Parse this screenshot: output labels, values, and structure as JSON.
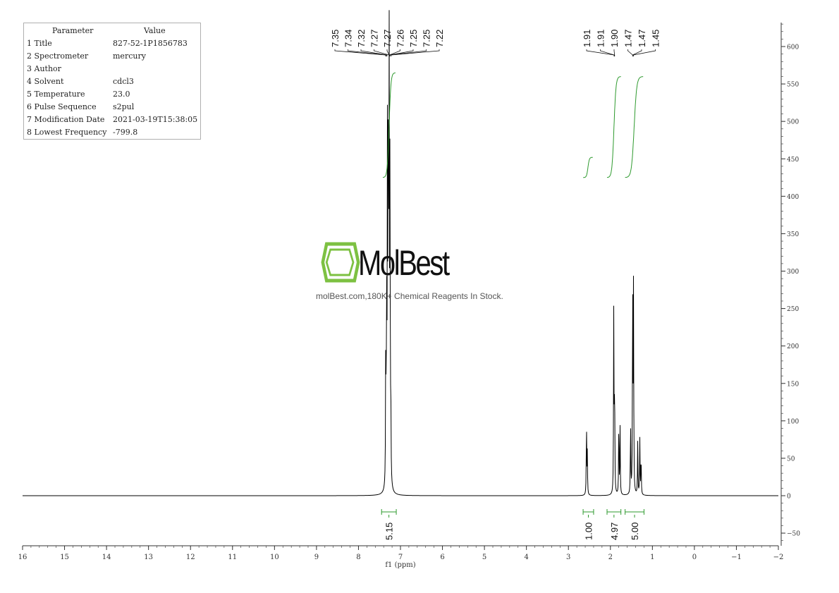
{
  "parameter_table": {
    "header": {
      "param": "Parameter",
      "value": "Value"
    },
    "rows": [
      {
        "param": "1 Title",
        "value": "827-52-1P1856783"
      },
      {
        "param": "2 Spectrometer",
        "value": "mercury"
      },
      {
        "param": "3 Author",
        "value": ""
      },
      {
        "param": "4 Solvent",
        "value": "cdcl3"
      },
      {
        "param": "5 Temperature",
        "value": "23.0"
      },
      {
        "param": "6 Pulse Sequence",
        "value": "s2pul"
      },
      {
        "param": "7 Modification Date",
        "value": "2021-03-19T15:38:05"
      },
      {
        "param": "8 Lowest Frequency",
        "value": "-799.8"
      }
    ]
  },
  "watermark": {
    "brand": "MolBest",
    "tagline": "molBest.com,180K+ Chemical Reagents In Stock.",
    "logo_color": "#7dc142"
  },
  "chart_data": {
    "type": "line",
    "xlabel": "f1 (ppm)",
    "xlim": [
      16,
      -2
    ],
    "x_ticks": [
      16,
      15,
      14,
      13,
      12,
      11,
      10,
      9,
      8,
      7,
      6,
      5,
      4,
      3,
      2,
      1,
      0,
      -1,
      -2
    ],
    "ylim": [
      -60,
      640
    ],
    "y_ticks": [
      -50,
      0,
      50,
      100,
      150,
      200,
      250,
      300,
      350,
      400,
      450,
      500,
      550,
      600
    ],
    "peaks": [
      {
        "ppm": 7.35,
        "height": 190
      },
      {
        "ppm": 7.33,
        "height": 250
      },
      {
        "ppm": 7.31,
        "height": 440
      },
      {
        "ppm": 7.29,
        "height": 560
      },
      {
        "ppm": 7.27,
        "height": 580
      },
      {
        "ppm": 7.25,
        "height": 430
      },
      {
        "ppm": 7.23,
        "height": 105
      },
      {
        "ppm": 2.57,
        "height": 97
      },
      {
        "ppm": 2.55,
        "height": 55
      },
      {
        "ppm": 1.92,
        "height": 245
      },
      {
        "ppm": 1.9,
        "height": 150
      },
      {
        "ppm": 1.8,
        "height": 100
      },
      {
        "ppm": 1.77,
        "height": 90
      },
      {
        "ppm": 1.52,
        "height": 95
      },
      {
        "ppm": 1.47,
        "height": 285
      },
      {
        "ppm": 1.45,
        "height": 270
      },
      {
        "ppm": 1.35,
        "height": 70
      },
      {
        "ppm": 1.3,
        "height": 75
      },
      {
        "ppm": 1.27,
        "height": 55
      }
    ],
    "peak_labels": {
      "group1": [
        "7.35",
        "7.34",
        "7.32",
        "7.27",
        "7.27",
        "7.26",
        "7.25",
        "7.25",
        "7.22"
      ],
      "group2": [
        "1.91",
        "1.91",
        "1.90",
        "1.47",
        "1.47",
        "1.45"
      ]
    },
    "integrals": [
      {
        "from": 7.45,
        "to": 7.1,
        "value": "5.15"
      },
      {
        "from": 2.65,
        "to": 2.4,
        "value": "1.00"
      },
      {
        "from": 2.08,
        "to": 1.75,
        "value": "4.97"
      },
      {
        "from": 1.65,
        "to": 1.2,
        "value": "5.00"
      }
    ],
    "colors": {
      "spectrum": "#000000",
      "integral": "#2e9a2e",
      "axis": "#333333"
    }
  }
}
